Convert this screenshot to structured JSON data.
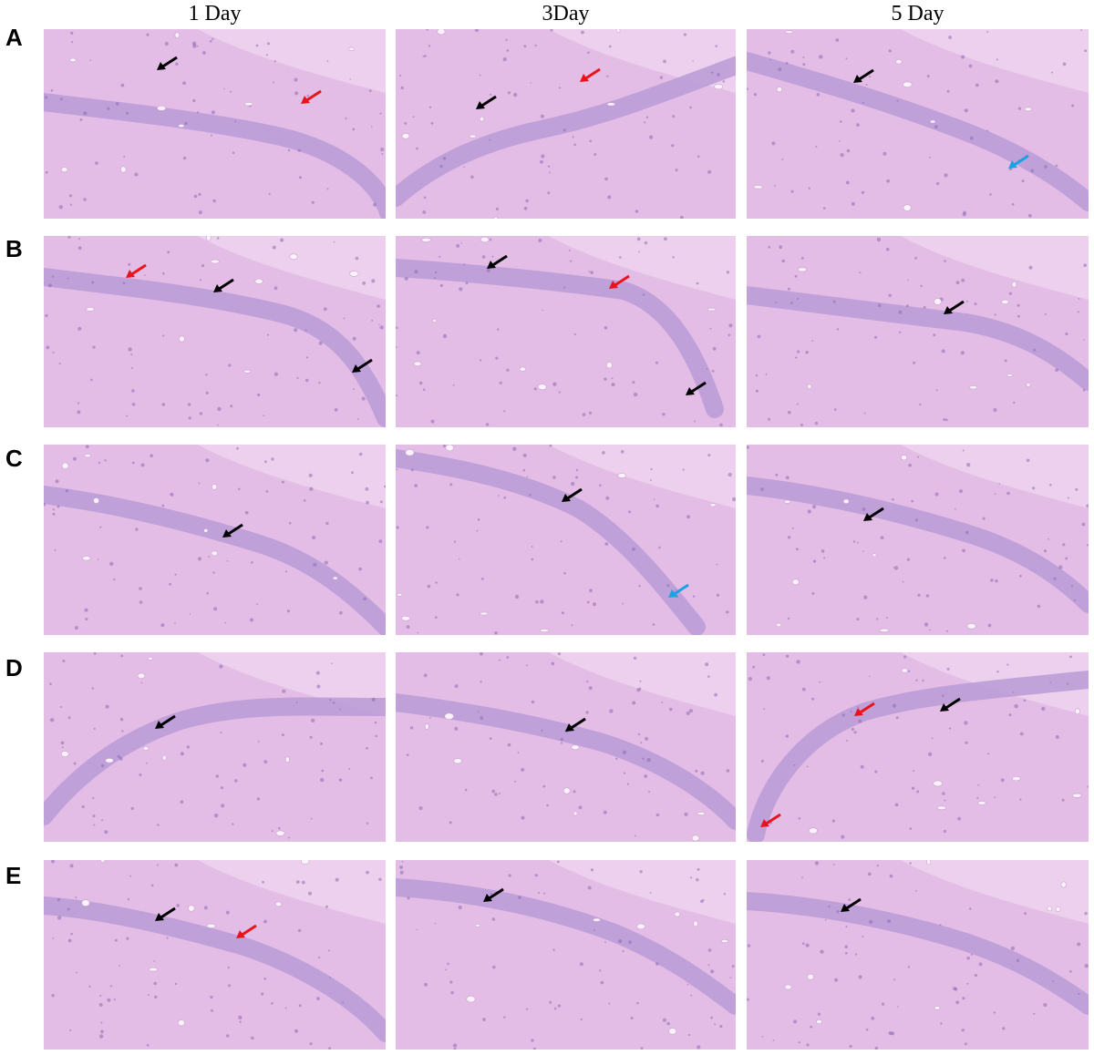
{
  "columns": [
    "1 Day",
    "3Day",
    "5 Day"
  ],
  "rows": [
    {
      "label": "A",
      "panels": [
        {
          "arrows": [
            {
              "color": "black"
            },
            {
              "color": "red"
            }
          ]
        },
        {
          "arrows": [
            {
              "color": "black"
            },
            {
              "color": "red"
            }
          ]
        },
        {
          "arrows": [
            {
              "color": "black"
            },
            {
              "color": "blue"
            }
          ]
        }
      ]
    },
    {
      "label": "B",
      "panels": [
        {
          "arrows": [
            {
              "color": "red"
            },
            {
              "color": "black"
            },
            {
              "color": "black"
            }
          ]
        },
        {
          "arrows": [
            {
              "color": "black"
            },
            {
              "color": "red"
            },
            {
              "color": "black"
            }
          ]
        },
        {
          "arrows": [
            {
              "color": "black"
            }
          ]
        }
      ]
    },
    {
      "label": "C",
      "panels": [
        {
          "arrows": [
            {
              "color": "black"
            }
          ]
        },
        {
          "arrows": [
            {
              "color": "black"
            },
            {
              "color": "blue"
            }
          ]
        },
        {
          "arrows": [
            {
              "color": "black"
            }
          ]
        }
      ]
    },
    {
      "label": "D",
      "panels": [
        {
          "arrows": [
            {
              "color": "black"
            }
          ]
        },
        {
          "arrows": [
            {
              "color": "black"
            }
          ]
        },
        {
          "arrows": [
            {
              "color": "red"
            },
            {
              "color": "black"
            },
            {
              "color": "red"
            }
          ]
        }
      ]
    },
    {
      "label": "E",
      "panels": [
        {
          "arrows": [
            {
              "color": "black"
            },
            {
              "color": "red"
            }
          ]
        },
        {
          "arrows": [
            {
              "color": "black"
            }
          ]
        },
        {
          "arrows": [
            {
              "color": "black"
            }
          ]
        }
      ]
    }
  ],
  "colors": {
    "tissue": "#e4bde6",
    "cell_layer": "#b99bd6",
    "arrow_black": "#000000",
    "arrow_red": "#e8141c",
    "arrow_blue": "#1aa3e0"
  }
}
